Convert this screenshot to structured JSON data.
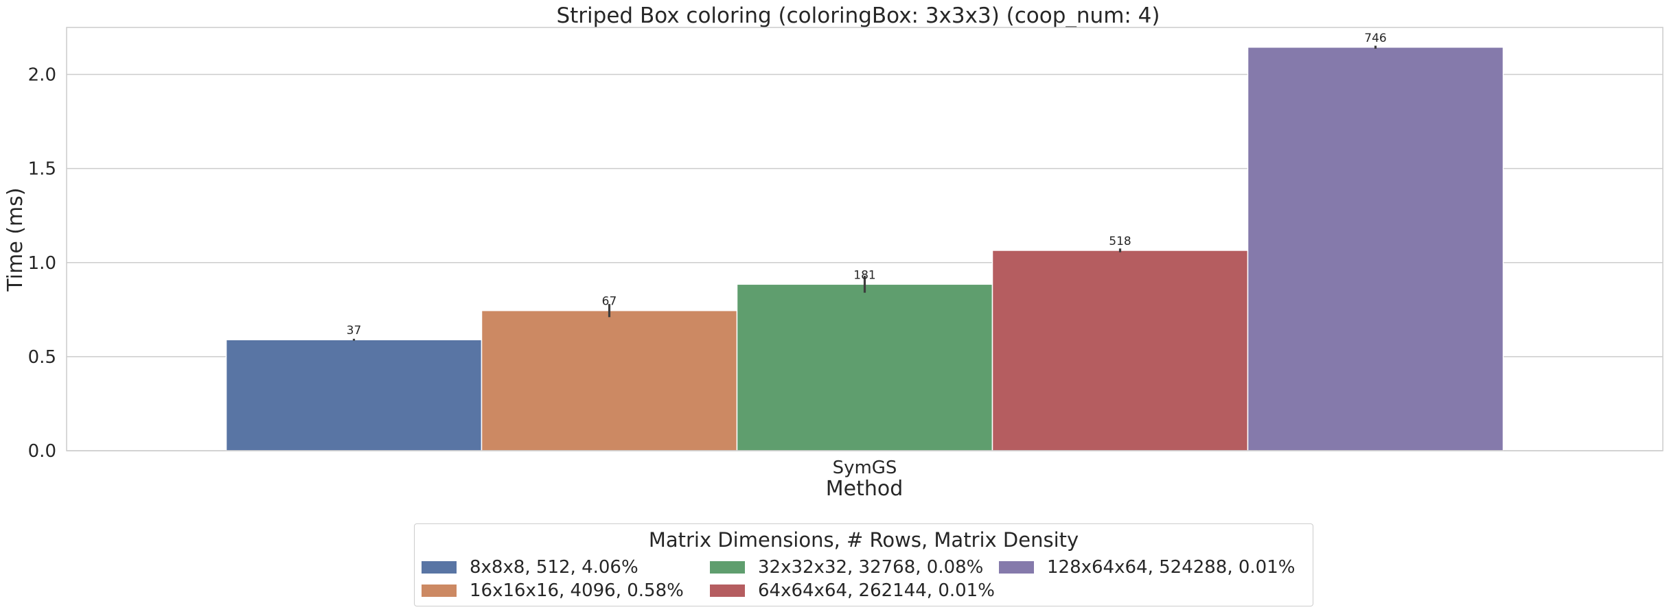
{
  "chart_data": {
    "type": "bar",
    "title": "Striped Box coloring (coloringBox: 3x3x3) (coop_num: 4)",
    "xlabel": "Method",
    "ylabel": "Time (ms)",
    "categories": [
      "SymGS"
    ],
    "ylim": [
      0,
      2.25
    ],
    "yticks": [
      "0.0",
      "0.5",
      "1.0",
      "1.5",
      "2.0"
    ],
    "grid": true,
    "legend_title": "Matrix Dimensions, # Rows, Matrix Density",
    "legend_position": "bottom-center",
    "series": [
      {
        "name": "8x8x8, 512, 4.06%",
        "values": [
          0.59
        ],
        "error": [
          0.005
        ],
        "label": "37",
        "color": "#5975a4"
      },
      {
        "name": "16x16x16, 4096, 0.58%",
        "values": [
          0.745
        ],
        "error": [
          0.035
        ],
        "label": "67",
        "color": "#cc8963"
      },
      {
        "name": "32x32x32, 32768, 0.08%",
        "values": [
          0.885
        ],
        "error": [
          0.045
        ],
        "label": "181",
        "color": "#5f9e6e"
      },
      {
        "name": "64x64x64, 262144, 0.01%",
        "values": [
          1.065
        ],
        "error": [
          0.01
        ],
        "label": "518",
        "color": "#b55d60"
      },
      {
        "name": "128x64x64, 524288, 0.01%",
        "values": [
          2.145
        ],
        "error": [
          0.008
        ],
        "label": "746",
        "color": "#857aab"
      }
    ]
  }
}
